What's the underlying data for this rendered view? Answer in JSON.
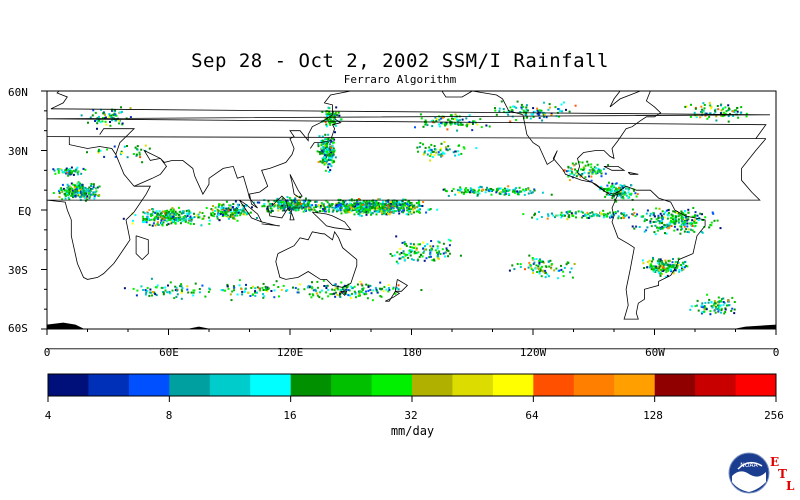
{
  "title": "Sep 28 - Oct 2, 2002 SSM/I Rainfall",
  "subtitle": "Ferraro Algorithm",
  "map": {
    "projection": "equirectangular",
    "lon_range": [
      0,
      360
    ],
    "lat_range": [
      -60,
      60
    ],
    "lat_labels": [
      "60N",
      "30N",
      "EQ",
      "30S",
      "60S"
    ],
    "lat_values": [
      60,
      30,
      0,
      -30,
      -60
    ],
    "lon_labels": [
      "0",
      "60E",
      "120E",
      "180",
      "120W",
      "60W",
      "0"
    ],
    "lon_values": [
      0,
      60,
      120,
      180,
      240,
      300,
      360
    ],
    "coastline_color": "#000000",
    "land_color": "#ffffff",
    "ocean_color": "#ffffff"
  },
  "colorbar": {
    "units": "mm/day",
    "tick_labels": [
      "4",
      "8",
      "16",
      "32",
      "64",
      "128",
      "256"
    ],
    "colors": [
      "#00107a",
      "#0030b8",
      "#0050ff",
      "#00a0a0",
      "#00cccc",
      "#00ffff",
      "#009000",
      "#00c000",
      "#00f000",
      "#b0b000",
      "#dcdc00",
      "#ffff00",
      "#ff5000",
      "#ff8000",
      "#ffa000",
      "#900000",
      "#c80000",
      "#ff0000"
    ]
  },
  "logo": {
    "name": "NOAA",
    "letters": [
      "E",
      "T",
      "L"
    ]
  }
}
